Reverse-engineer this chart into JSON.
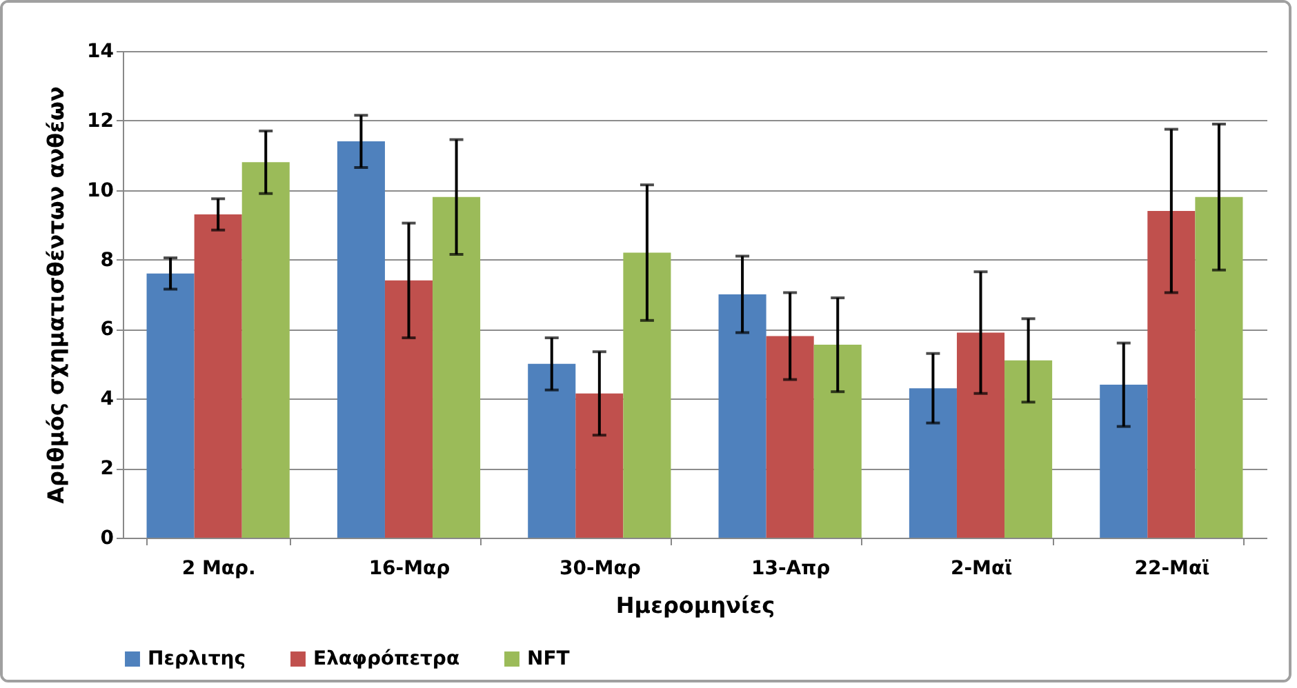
{
  "chart_data": {
    "type": "bar",
    "xlabel": "Ημερομηνίες",
    "ylabel": "Αριθμός σχηματισθέντων ανθέων",
    "categories": [
      "2 Μαρ.",
      "16-Μαρ",
      "30-Μαρ",
      "13-Απρ",
      "2-Μαϊ",
      "22-Μαϊ"
    ],
    "series": [
      {
        "name": "Περλιτης",
        "color": "#4f81bd",
        "values": [
          7.6,
          11.4,
          5.0,
          7.0,
          4.3,
          4.4
        ],
        "errors": [
          0.45,
          0.75,
          0.75,
          1.1,
          1.0,
          1.2
        ]
      },
      {
        "name": "Ελαφρόπετρα",
        "color": "#c0504d",
        "values": [
          9.3,
          7.4,
          4.15,
          5.8,
          5.9,
          9.4
        ],
        "errors": [
          0.45,
          1.65,
          1.2,
          1.25,
          1.75,
          2.35
        ]
      },
      {
        "name": "NFT",
        "color": "#9bbb59",
        "values": [
          10.8,
          9.8,
          8.2,
          5.55,
          5.1,
          9.8
        ],
        "errors": [
          0.9,
          1.65,
          1.95,
          1.35,
          1.2,
          2.1
        ]
      }
    ],
    "ylim": [
      0,
      14
    ],
    "yticks": [
      0,
      2,
      4,
      6,
      8,
      10,
      12,
      14
    ],
    "grid": "y",
    "legend": "bottom"
  }
}
